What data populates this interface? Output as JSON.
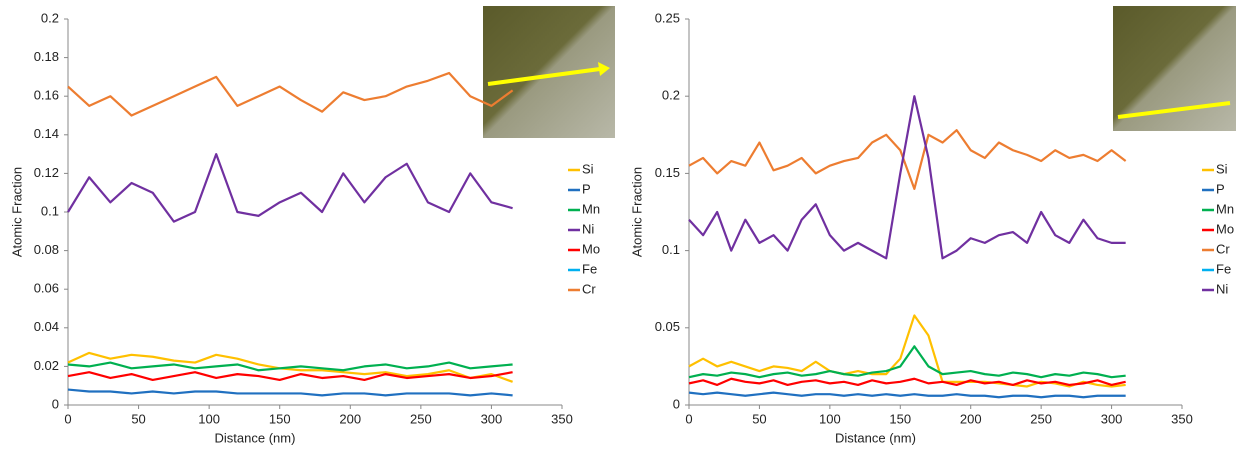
{
  "chart_data": [
    {
      "type": "line",
      "ylabel": "Atomic Fraction",
      "xlabel": "Distance (nm)",
      "xlim": [
        0,
        350
      ],
      "xticks": [
        0,
        50,
        100,
        150,
        200,
        250,
        300,
        350
      ],
      "ylim": [
        0,
        0.2
      ],
      "yticks": [
        0,
        0.02,
        0.04,
        0.06,
        0.08,
        0.1,
        0.12,
        0.14,
        0.16,
        0.18,
        0.2
      ],
      "x": [
        0,
        15,
        30,
        45,
        60,
        75,
        90,
        105,
        120,
        135,
        150,
        165,
        180,
        195,
        210,
        225,
        240,
        255,
        270,
        285,
        300,
        315
      ],
      "series": [
        {
          "name": "Si",
          "color": "#ffc000",
          "values": [
            0.022,
            0.027,
            0.024,
            0.026,
            0.025,
            0.023,
            0.022,
            0.026,
            0.024,
            0.021,
            0.019,
            0.018,
            0.018,
            0.017,
            0.016,
            0.017,
            0.015,
            0.016,
            0.018,
            0.014,
            0.016,
            0.012
          ]
        },
        {
          "name": "P",
          "color": "#2070c0",
          "values": [
            0.008,
            0.007,
            0.007,
            0.006,
            0.007,
            0.006,
            0.007,
            0.007,
            0.006,
            0.006,
            0.006,
            0.006,
            0.005,
            0.006,
            0.006,
            0.005,
            0.006,
            0.006,
            0.006,
            0.005,
            0.006,
            0.005
          ]
        },
        {
          "name": "Mn",
          "color": "#00b050",
          "values": [
            0.021,
            0.02,
            0.022,
            0.019,
            0.02,
            0.021,
            0.019,
            0.02,
            0.021,
            0.018,
            0.019,
            0.02,
            0.019,
            0.018,
            0.02,
            0.021,
            0.019,
            0.02,
            0.022,
            0.019,
            0.02,
            0.021
          ]
        },
        {
          "name": "Ni",
          "color": "#7030a0",
          "values": [
            0.1,
            0.118,
            0.105,
            0.115,
            0.11,
            0.095,
            0.1,
            0.13,
            0.1,
            0.098,
            0.105,
            0.11,
            0.1,
            0.12,
            0.105,
            0.118,
            0.125,
            0.105,
            0.1,
            0.12,
            0.105,
            0.102
          ]
        },
        {
          "name": "Mo",
          "color": "#ff0000",
          "values": [
            0.015,
            0.017,
            0.014,
            0.016,
            0.013,
            0.015,
            0.017,
            0.014,
            0.016,
            0.015,
            0.013,
            0.016,
            0.014,
            0.015,
            0.013,
            0.016,
            0.014,
            0.015,
            0.016,
            0.014,
            0.015,
            0.017
          ]
        },
        {
          "name": "Fe",
          "color": "#00b0f0",
          "values": [
            null,
            null,
            null,
            null,
            null,
            null,
            null,
            null,
            null,
            null,
            null,
            null,
            null,
            null,
            null,
            null,
            null,
            null,
            null,
            null,
            null,
            null
          ]
        },
        {
          "name": "Cr",
          "color": "#ed7d31",
          "values": [
            0.165,
            0.155,
            0.16,
            0.15,
            0.155,
            0.16,
            0.165,
            0.17,
            0.155,
            0.16,
            0.165,
            0.158,
            0.152,
            0.162,
            0.158,
            0.16,
            0.165,
            0.168,
            0.172,
            0.16,
            0.155,
            0.163
          ]
        }
      ]
    },
    {
      "type": "line",
      "ylabel": "Atomic Fraction",
      "xlabel": "Distance (nm)",
      "xlim": [
        0,
        350
      ],
      "xticks": [
        0,
        50,
        100,
        150,
        200,
        250,
        300,
        350
      ],
      "ylim": [
        0,
        0.25
      ],
      "yticks": [
        0,
        0.05,
        0.1,
        0.15,
        0.2,
        0.25
      ],
      "x": [
        0,
        10,
        20,
        30,
        40,
        50,
        60,
        70,
        80,
        90,
        100,
        110,
        120,
        130,
        140,
        150,
        160,
        170,
        180,
        190,
        200,
        210,
        220,
        230,
        240,
        250,
        260,
        270,
        280,
        290,
        300,
        310
      ],
      "series": [
        {
          "name": "Si",
          "color": "#ffc000",
          "values": [
            0.025,
            0.03,
            0.025,
            0.028,
            0.025,
            0.022,
            0.025,
            0.024,
            0.022,
            0.028,
            0.022,
            0.02,
            0.022,
            0.02,
            0.02,
            0.03,
            0.058,
            0.045,
            0.015,
            0.015,
            0.015,
            0.015,
            0.014,
            0.013,
            0.012,
            0.015,
            0.014,
            0.012,
            0.015,
            0.013,
            0.012,
            0.013
          ]
        },
        {
          "name": "P",
          "color": "#2070c0",
          "values": [
            0.008,
            0.007,
            0.008,
            0.007,
            0.006,
            0.007,
            0.008,
            0.007,
            0.006,
            0.007,
            0.007,
            0.006,
            0.007,
            0.006,
            0.007,
            0.006,
            0.007,
            0.006,
            0.006,
            0.007,
            0.006,
            0.006,
            0.005,
            0.006,
            0.006,
            0.005,
            0.006,
            0.006,
            0.005,
            0.006,
            0.006,
            0.006
          ]
        },
        {
          "name": "Mn",
          "color": "#00b050",
          "values": [
            0.018,
            0.02,
            0.019,
            0.021,
            0.02,
            0.018,
            0.02,
            0.021,
            0.019,
            0.02,
            0.022,
            0.02,
            0.019,
            0.021,
            0.022,
            0.025,
            0.038,
            0.025,
            0.02,
            0.021,
            0.022,
            0.02,
            0.019,
            0.021,
            0.02,
            0.018,
            0.02,
            0.019,
            0.021,
            0.02,
            0.018,
            0.019
          ]
        },
        {
          "name": "Mo",
          "color": "#ff0000",
          "values": [
            0.014,
            0.016,
            0.013,
            0.017,
            0.015,
            0.014,
            0.016,
            0.013,
            0.015,
            0.016,
            0.014,
            0.015,
            0.013,
            0.016,
            0.014,
            0.015,
            0.017,
            0.014,
            0.015,
            0.013,
            0.016,
            0.014,
            0.015,
            0.013,
            0.016,
            0.014,
            0.015,
            0.013,
            0.014,
            0.016,
            0.013,
            0.015
          ]
        },
        {
          "name": "Cr",
          "color": "#ed7d31",
          "values": [
            0.155,
            0.16,
            0.15,
            0.158,
            0.155,
            0.17,
            0.152,
            0.155,
            0.16,
            0.15,
            0.155,
            0.158,
            0.16,
            0.17,
            0.175,
            0.165,
            0.14,
            0.175,
            0.17,
            0.178,
            0.165,
            0.16,
            0.17,
            0.165,
            0.162,
            0.158,
            0.165,
            0.16,
            0.162,
            0.158,
            0.165,
            0.158
          ]
        },
        {
          "name": "Fe",
          "color": "#00b0f0",
          "values": [
            null,
            null,
            null,
            null,
            null,
            null,
            null,
            null,
            null,
            null,
            null,
            null,
            null,
            null,
            null,
            null,
            null,
            null,
            null,
            null,
            null,
            null,
            null,
            null,
            null,
            null,
            null,
            null,
            null,
            null,
            null,
            null
          ]
        },
        {
          "name": "Ni",
          "color": "#7030a0",
          "values": [
            0.12,
            0.11,
            0.125,
            0.1,
            0.12,
            0.105,
            0.11,
            0.1,
            0.12,
            0.13,
            0.11,
            0.1,
            0.105,
            0.1,
            0.095,
            0.15,
            0.2,
            0.16,
            0.095,
            0.1,
            0.108,
            0.105,
            0.11,
            0.112,
            0.105,
            0.125,
            0.11,
            0.105,
            0.12,
            0.108,
            0.105,
            0.105
          ]
        }
      ]
    }
  ]
}
